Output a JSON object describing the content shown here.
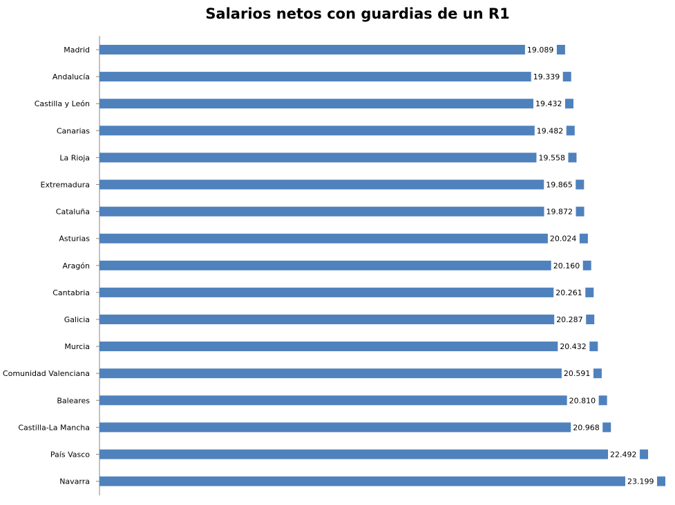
{
  "chart_data": {
    "type": "bar",
    "orientation": "horizontal",
    "title": "Salarios netos con guardias de un R1",
    "xlabel": "",
    "ylabel": "",
    "grid": false,
    "legend": "none",
    "categories": [
      "Madrid",
      "Andalucía",
      "Castilla y León",
      "Canarias",
      "La Rioja",
      "Extremadura",
      "Cataluña",
      "Asturias",
      "Aragón",
      "Cantabria",
      "Galicia",
      "Murcia",
      "Comunidad Valenciana",
      "Baleares",
      "Castilla-La Mancha",
      "País Vasco",
      "Navarra"
    ],
    "values": [
      19089,
      19339,
      19432,
      19482,
      19558,
      19865,
      19872,
      20024,
      20160,
      20261,
      20287,
      20432,
      20591,
      20810,
      20968,
      22492,
      23199
    ],
    "value_labels": [
      "19.089",
      "19.339",
      "19.432",
      "19.482",
      "19.558",
      "19.865",
      "19.872",
      "20.024",
      "20.160",
      "20.261",
      "20.287",
      "20.432",
      "20.591",
      "20.810",
      "20.968",
      "22.492",
      "23.199"
    ],
    "xlim": [
      0,
      23199
    ],
    "bar_color": "#4F81BD"
  }
}
